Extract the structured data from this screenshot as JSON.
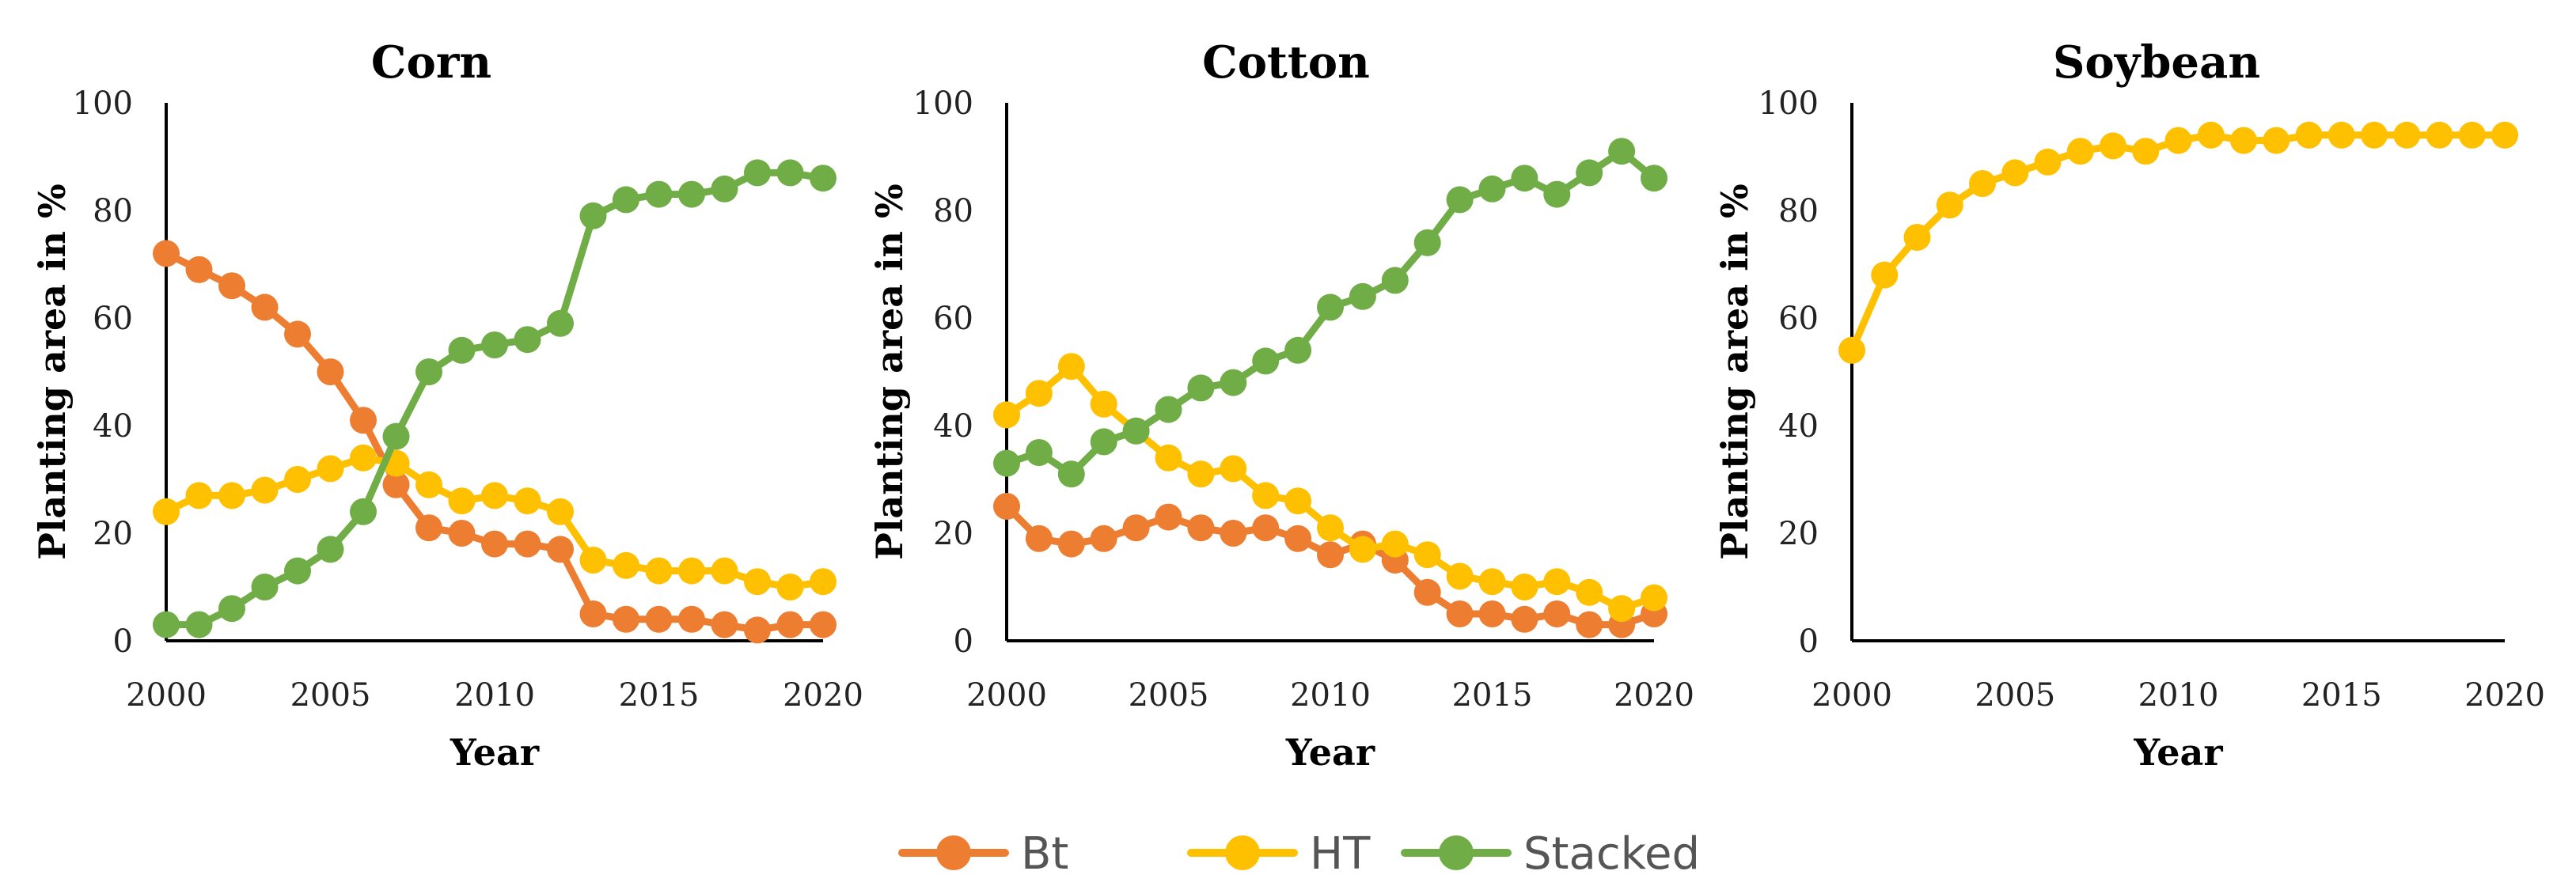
{
  "colors": {
    "Bt": "#ED7D31",
    "HT": "#FFC000",
    "Stacked": "#70AD47"
  },
  "legend": [
    "Bt",
    "HT",
    "Stacked"
  ],
  "chart_data": [
    {
      "type": "line",
      "title": "Corn",
      "xlabel": "Year",
      "ylabel": "Planting area in %",
      "xlim": [
        2000,
        2020
      ],
      "ylim": [
        0,
        100
      ],
      "xticks": [
        2000,
        2005,
        2010,
        2015,
        2020
      ],
      "yticks": [
        0,
        20,
        40,
        60,
        80,
        100
      ],
      "x": [
        2000,
        2001,
        2002,
        2003,
        2004,
        2005,
        2006,
        2007,
        2008,
        2009,
        2010,
        2011,
        2012,
        2013,
        2014,
        2015,
        2016,
        2017,
        2018,
        2019,
        2020
      ],
      "series": [
        {
          "name": "Bt",
          "values": [
            72,
            69,
            66,
            62,
            57,
            50,
            41,
            29,
            21,
            20,
            18,
            18,
            17,
            5,
            4,
            4,
            4,
            3,
            2,
            3,
            3
          ]
        },
        {
          "name": "HT",
          "values": [
            24,
            27,
            27,
            28,
            30,
            32,
            34,
            33,
            29,
            26,
            27,
            26,
            24,
            15,
            14,
            13,
            13,
            13,
            11,
            10,
            11
          ]
        },
        {
          "name": "Stacked",
          "values": [
            3,
            3,
            6,
            10,
            13,
            17,
            24,
            38,
            50,
            54,
            55,
            56,
            59,
            79,
            82,
            83,
            83,
            84,
            87,
            87,
            86
          ]
        }
      ]
    },
    {
      "type": "line",
      "title": "Cotton",
      "xlabel": "Year",
      "ylabel": "Planting area in %",
      "xlim": [
        2000,
        2020
      ],
      "ylim": [
        0,
        100
      ],
      "xticks": [
        2000,
        2005,
        2010,
        2015,
        2020
      ],
      "yticks": [
        0,
        20,
        40,
        60,
        80,
        100
      ],
      "x": [
        2000,
        2001,
        2002,
        2003,
        2004,
        2005,
        2006,
        2007,
        2008,
        2009,
        2010,
        2011,
        2012,
        2013,
        2014,
        2015,
        2016,
        2017,
        2018,
        2019,
        2020
      ],
      "series": [
        {
          "name": "Bt",
          "values": [
            25,
            19,
            18,
            19,
            21,
            23,
            21,
            20,
            21,
            19,
            16,
            18,
            15,
            9,
            5,
            5,
            4,
            5,
            3,
            3,
            5
          ]
        },
        {
          "name": "HT",
          "values": [
            42,
            46,
            51,
            44,
            39,
            34,
            31,
            32,
            27,
            26,
            21,
            17,
            18,
            16,
            12,
            11,
            10,
            11,
            9,
            6,
            8
          ]
        },
        {
          "name": "Stacked",
          "values": [
            33,
            35,
            31,
            37,
            39,
            43,
            47,
            48,
            52,
            54,
            62,
            64,
            67,
            74,
            82,
            84,
            86,
            83,
            87,
            91,
            86
          ]
        }
      ]
    },
    {
      "type": "line",
      "title": "Soybean",
      "xlabel": "Year",
      "ylabel": "Planting area in %",
      "xlim": [
        2000,
        2020
      ],
      "ylim": [
        0,
        100
      ],
      "xticks": [
        2000,
        2005,
        2010,
        2015,
        2020
      ],
      "yticks": [
        0,
        20,
        40,
        60,
        80,
        100
      ],
      "x": [
        2000,
        2001,
        2002,
        2003,
        2004,
        2005,
        2006,
        2007,
        2008,
        2009,
        2010,
        2011,
        2012,
        2013,
        2014,
        2015,
        2016,
        2017,
        2018,
        2019,
        2020
      ],
      "series": [
        {
          "name": "HT",
          "values": [
            54,
            68,
            75,
            81,
            85,
            87,
            89,
            91,
            92,
            91,
            93,
            94,
            93,
            93,
            94,
            94,
            94,
            94,
            94,
            94,
            94
          ]
        }
      ]
    }
  ]
}
